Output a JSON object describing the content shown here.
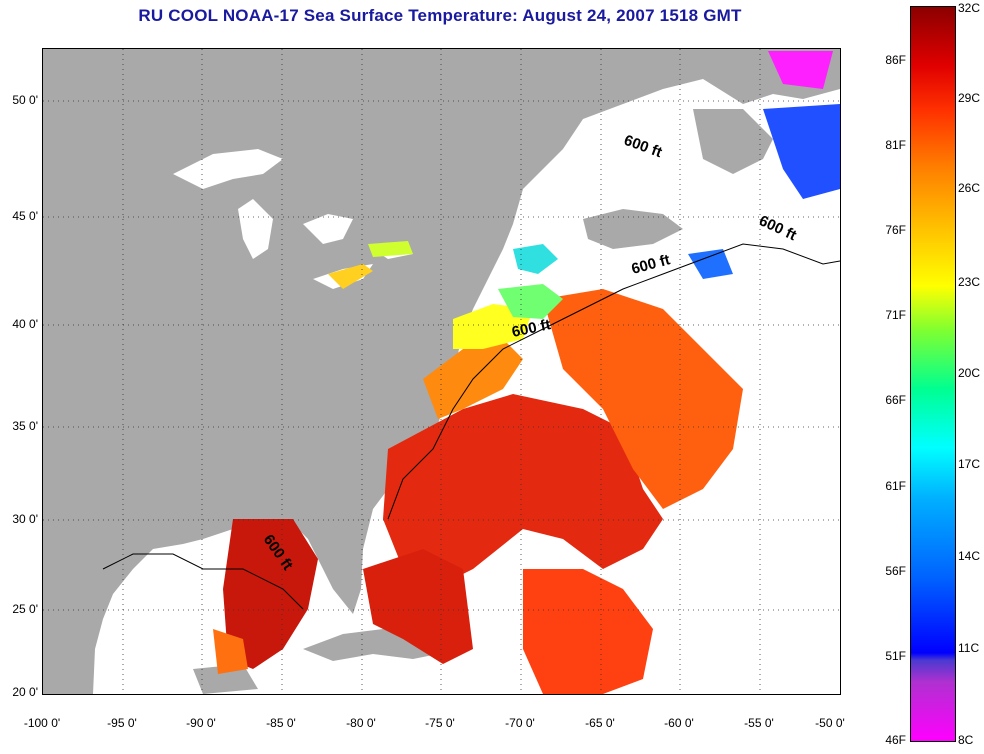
{
  "title": "RU COOL  NOAA-17  Sea Surface Temperature:  August 24, 2007 1518 GMT",
  "map": {
    "lon_range": [
      -100,
      -50
    ],
    "lat_range": [
      20,
      52.5
    ],
    "x_ticks": [
      "-100 0'",
      "-95 0'",
      "-90 0'",
      "-85 0'",
      "-80 0'",
      "-75 0'",
      "-70 0'",
      "-65 0'",
      "-60 0'",
      "-55 0'",
      "-50 0'"
    ],
    "y_ticks": [
      "50 0'",
      "45 0'",
      "40 0'",
      "35 0'",
      "30 0'",
      "25 0'",
      "20 0'"
    ],
    "contour_label": "600 ft",
    "grid": "dotted",
    "colors": {
      "land": "#a9a9a9",
      "no_data": "#ffffff",
      "coast": "#000000"
    }
  },
  "colorbar": {
    "celsius_labels": [
      "32C",
      "29C",
      "26C",
      "23C",
      "20C",
      "17C",
      "14C",
      "11C",
      "8C"
    ],
    "fahrenheit_labels": [
      "86F",
      "81F",
      "76F",
      "71F",
      "66F",
      "61F",
      "56F",
      "51F",
      "46F"
    ],
    "range_c": [
      8,
      32
    ],
    "colors": [
      "#ff00ff",
      "#0000ff",
      "#00ffff",
      "#ffff00",
      "#ff8000",
      "#e00000",
      "#8b0000"
    ]
  }
}
